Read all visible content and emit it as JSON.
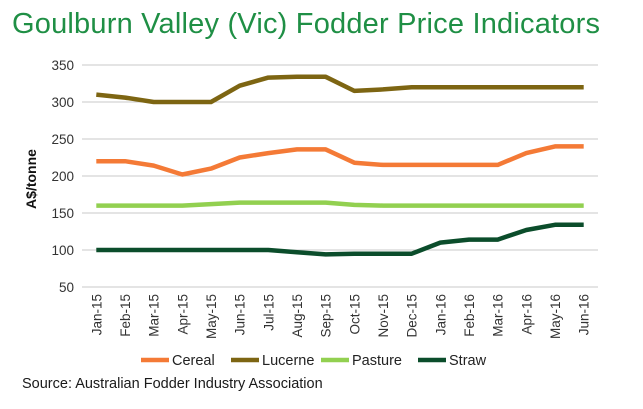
{
  "chart_data": {
    "type": "line",
    "title": "Goulburn Valley (Vic) Fodder Price Indicators",
    "ylabel": "A$/tonne",
    "xlabel": "",
    "ylim": [
      50,
      350
    ],
    "yticks": [
      50,
      100,
      150,
      200,
      250,
      300,
      350
    ],
    "grid": true,
    "legend_position": "bottom",
    "categories": [
      "Jan-15",
      "Feb-15",
      "Mar-15",
      "Apr-15",
      "May-15",
      "Jun-15",
      "Jul-15",
      "Aug-15",
      "Sep-15",
      "Oct-15",
      "Nov-15",
      "Dec-15",
      "Jan-16",
      "Feb-16",
      "Mar-16",
      "Apr-16",
      "May-16",
      "Jun-16"
    ],
    "series": [
      {
        "name": "Cereal",
        "color": "#f47a36",
        "values": [
          220,
          220,
          214,
          202,
          210,
          225,
          231,
          236,
          236,
          218,
          215,
          215,
          215,
          215,
          215,
          231,
          240,
          240
        ]
      },
      {
        "name": "Lucerne",
        "color": "#7d6512",
        "values": [
          310,
          306,
          300,
          300,
          300,
          322,
          333,
          334,
          334,
          315,
          317,
          320,
          320,
          320,
          320,
          320,
          320,
          320
        ]
      },
      {
        "name": "Pasture",
        "color": "#92d050",
        "values": [
          160,
          160,
          160,
          160,
          162,
          164,
          164,
          164,
          164,
          161,
          160,
          160,
          160,
          160,
          160,
          160,
          160,
          160
        ]
      },
      {
        "name": "Straw",
        "color": "#0b4d2b",
        "values": [
          100,
          100,
          100,
          100,
          100,
          100,
          100,
          97,
          94,
          95,
          95,
          95,
          110,
          114,
          114,
          127,
          134,
          134
        ]
      }
    ]
  },
  "source": "Source: Australian  Fodder Industry Association"
}
